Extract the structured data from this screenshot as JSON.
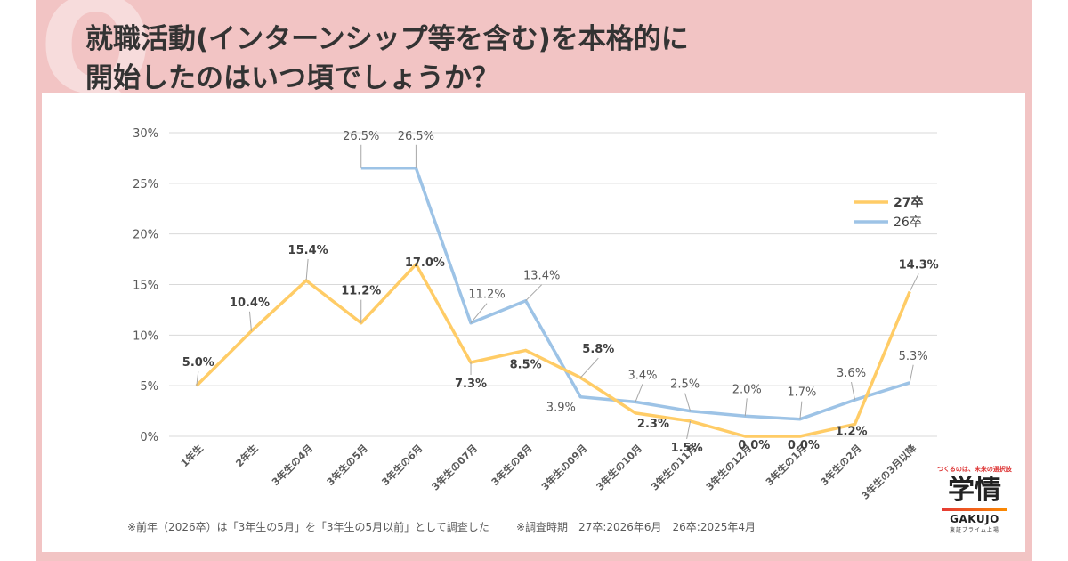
{
  "header": {
    "q_mark": "Q",
    "title_line1": "就職活動(インターンシップ等を含む)を本格的に",
    "title_line2": "開始したのはいつ頃でしょうか？"
  },
  "notes": {
    "left": "※前年（2026卒）は「3年生の5月」を「3年生の5月以前」として調査した",
    "right": "※調査時期　27卒:2026年6月　26卒:2025年4月"
  },
  "logo": {
    "tagline": "つくるのは、未来の選択肢",
    "name": "学情",
    "name_en": "GAKUJO",
    "sub": "東証プライム上場"
  },
  "chart_data": {
    "type": "line",
    "categories": [
      "1年生",
      "2年生",
      "3年生の4月",
      "3年生の5月",
      "3年生の6月",
      "3年生の07月",
      "3年生の8月",
      "3年生の09月",
      "3年生の10月",
      "3年生の11月",
      "3年生の12月",
      "3年生の1月",
      "3年生の2月",
      "3年生の3月以降"
    ],
    "yticks": [
      "0%",
      "5%",
      "10%",
      "15%",
      "20%",
      "25%",
      "30%"
    ],
    "ylim": [
      0,
      30
    ],
    "grid": true,
    "legend_position": "top-right",
    "series": [
      {
        "name": "27卒",
        "color": "#ffcc66",
        "values": [
          5.0,
          10.4,
          15.4,
          11.2,
          17.0,
          7.3,
          8.5,
          5.8,
          2.3,
          1.5,
          0.0,
          0.0,
          1.2,
          14.3
        ],
        "labels": [
          "5.0%",
          "10.4%",
          "15.4%",
          "11.2%",
          "17.0%",
          "7.3%",
          "8.5%",
          "5.8%",
          "2.3%",
          "1.5%",
          "0.0%",
          "0.0%",
          "1.2%",
          "14.3%"
        ]
      },
      {
        "name": "26卒",
        "color": "#9dc3e6",
        "values": [
          null,
          null,
          null,
          26.5,
          26.5,
          11.2,
          13.4,
          3.9,
          3.4,
          2.5,
          2.0,
          1.7,
          3.6,
          5.3
        ],
        "labels": [
          "",
          "",
          "",
          "26.5%",
          "26.5%",
          "11.2%",
          "13.4%",
          "3.9%",
          "3.4%",
          "2.5%",
          "2.0%",
          "1.7%",
          "3.6%",
          "5.3%"
        ]
      }
    ]
  }
}
